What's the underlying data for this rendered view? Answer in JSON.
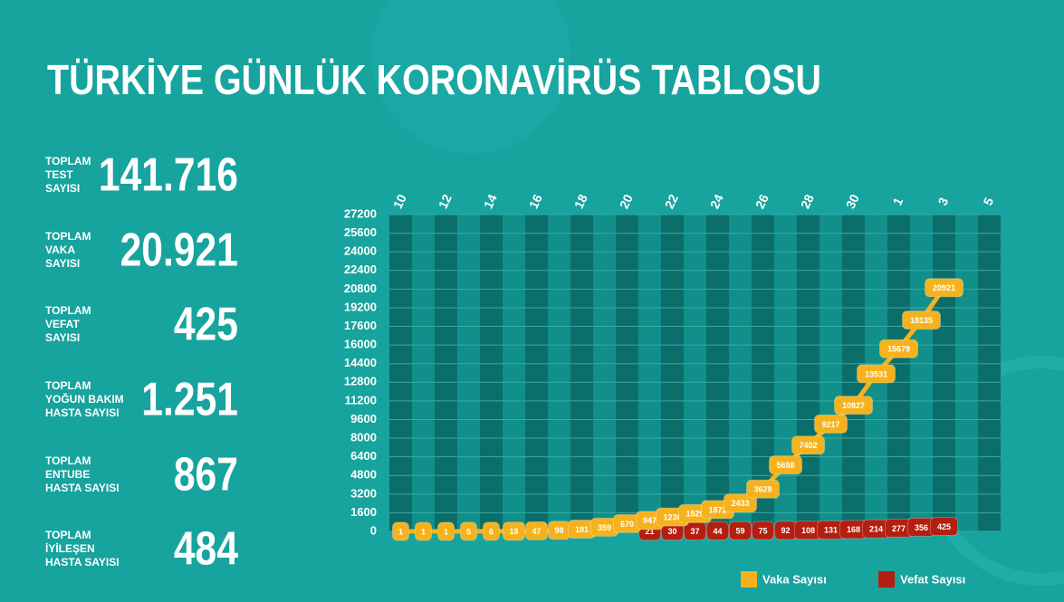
{
  "title": "TÜRKİYE GÜNLÜK KORONAVİRÜS TABLOSU",
  "stats": [
    {
      "label": [
        "TOPLAM",
        "TEST",
        "SAYISI"
      ],
      "value": "141.716"
    },
    {
      "label": [
        "TOPLAM",
        "VAKA",
        "SAYISI"
      ],
      "value": "20.921"
    },
    {
      "label": [
        "TOPLAM",
        "VEFAT",
        "SAYISI"
      ],
      "value": "425"
    },
    {
      "label": [
        "TOPLAM",
        "YOĞUN BAKIM",
        "HASTA SAYISI"
      ],
      "value": "1.251"
    },
    {
      "label": [
        "TOPLAM",
        "ENTUBE",
        "HASTA SAYISI"
      ],
      "value": "867"
    },
    {
      "label": [
        "TOPLAM",
        "İYİLEŞEN",
        "HASTA SAYISI"
      ],
      "value": "484"
    }
  ],
  "chart_data": {
    "type": "line",
    "categories": [
      "10",
      null,
      "12",
      null,
      "14",
      null,
      "16",
      null,
      "18",
      null,
      "20",
      null,
      "22",
      null,
      "24",
      null,
      "26",
      null,
      "28",
      null,
      "30",
      null,
      "1",
      null,
      "3",
      null,
      "5"
    ],
    "series": [
      {
        "name": "Vaka Sayısı",
        "color": "#f6b21c",
        "values": [
          1,
          1,
          1,
          5,
          6,
          18,
          47,
          98,
          191,
          359,
          670,
          947,
          1236,
          1529,
          1872,
          2433,
          3629,
          5698,
          7402,
          9217,
          10827,
          13531,
          15679,
          18135,
          20921,
          null,
          null
        ]
      },
      {
        "name": "Vefat Sayısı",
        "color": "#b31f10",
        "values": [
          null,
          null,
          null,
          null,
          null,
          null,
          null,
          null,
          null,
          null,
          null,
          21,
          30,
          37,
          44,
          59,
          75,
          92,
          108,
          131,
          168,
          214,
          277,
          356,
          425,
          null,
          null
        ]
      }
    ],
    "ylim": [
      0,
      27200
    ],
    "yticks": [
      0,
      1600,
      3200,
      4800,
      6400,
      8000,
      9600,
      11200,
      12800,
      14400,
      16000,
      17600,
      19200,
      20800,
      22400,
      24000,
      25600,
      27200
    ],
    "grid": true,
    "legend": "bottom-right"
  }
}
